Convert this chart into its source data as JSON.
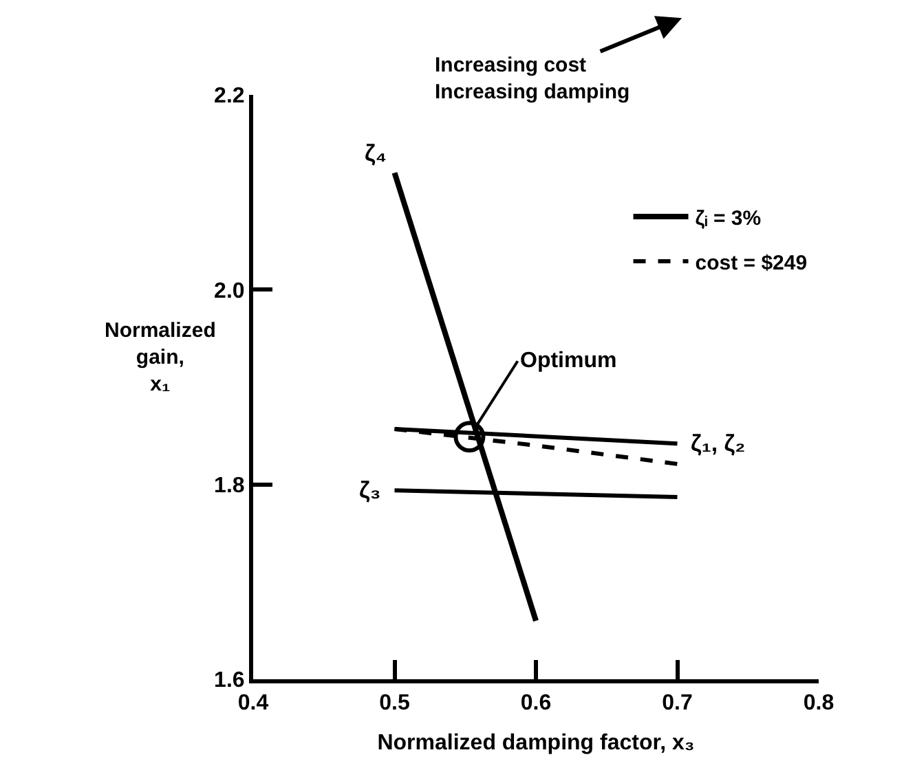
{
  "chart_data": {
    "type": "line",
    "xlabel": "Normalized damping factor, x₃",
    "ylabel": "Normalized\ngain,\nx₁",
    "xlim": [
      0.4,
      0.8
    ],
    "xticks": [
      0.4,
      0.5,
      0.6,
      0.7,
      0.8
    ],
    "ylim": [
      1.6,
      2.2
    ],
    "yticks": [
      1.6,
      1.8,
      {
        "value": 2.0,
        "label": "2.0"
      },
      2.2
    ],
    "legend": "top right",
    "marker": "none",
    "series": [
      {
        "name": "ζᵢ = 3%",
        "color": "#000000",
        "line_style": "solid",
        "x": [
          0.5,
          0.6
        ],
        "values": [
          2.12,
          1.66
        ]
      },
      {
        "color": "#000000",
        "line_style": "solid",
        "x": [
          0.5,
          0.7
        ],
        "values": [
          1.857,
          1.842
        ]
      },
      {
        "color": "#000000",
        "line_style": "solid",
        "x": [
          0.5,
          0.7
        ],
        "values": [
          1.794,
          1.787
        ]
      },
      {
        "name": "cost = $249",
        "color": "#000000",
        "line_style": "dashed",
        "x": [
          0.5,
          0.6,
          0.7
        ],
        "values": [
          1.857,
          1.84,
          1.821
        ]
      },
      {
        "type": "scatter",
        "marker": "circle",
        "color": "#000000",
        "x": [
          0.553
        ],
        "values": [
          1.849
        ]
      }
    ],
    "annotations": [
      {
        "text": "ζ₄",
        "x": 0.5,
        "y": 2.12
      },
      {
        "text": "ζ₁, ζ₂",
        "x": 0.7,
        "y": 1.842
      },
      {
        "text": "ζ₃",
        "x": 0.5,
        "y": 1.794
      },
      {
        "text": "Optimum",
        "x": 0.553,
        "y": 1.849
      },
      "Increasing cost\nIncreasing damping"
    ]
  }
}
